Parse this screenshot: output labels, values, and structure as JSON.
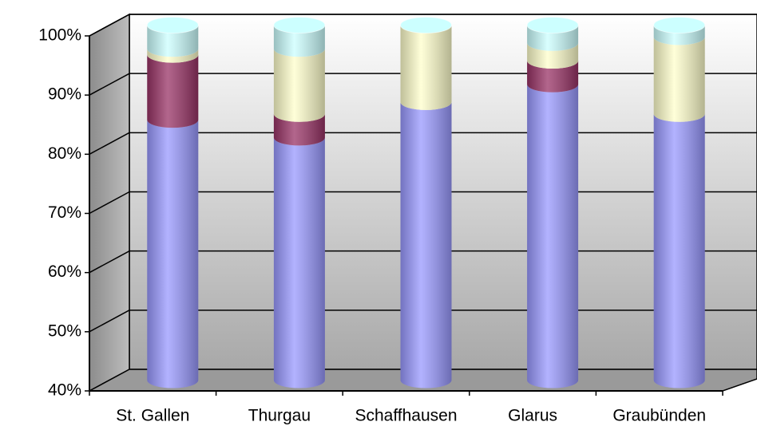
{
  "chart_data": {
    "type": "bar3d_stacked_cylinder",
    "categories": [
      "St. Gallen",
      "Thurgau",
      "Schaffhausen",
      "Glarus",
      "Graubünden"
    ],
    "series": [
      {
        "color": "#9999ff",
        "values": [
          84,
          81,
          87,
          90,
          85
        ]
      },
      {
        "color": "#993366",
        "values": [
          11,
          4,
          0,
          4,
          0
        ]
      },
      {
        "color": "#ffffcc",
        "values": [
          1,
          11,
          13,
          3,
          13
        ]
      },
      {
        "color": "#ccffff",
        "values": [
          4,
          4,
          0,
          3,
          2
        ]
      }
    ],
    "ylim": [
      40,
      100
    ],
    "yticks": [
      {
        "value": 40,
        "label": "40%"
      },
      {
        "value": 50,
        "label": "50%"
      },
      {
        "value": 60,
        "label": "60%"
      },
      {
        "value": 70,
        "label": "70%"
      },
      {
        "value": 80,
        "label": "80%"
      },
      {
        "value": 90,
        "label": "90%"
      },
      {
        "value": 100,
        "label": "100%"
      }
    ],
    "grid": true
  }
}
